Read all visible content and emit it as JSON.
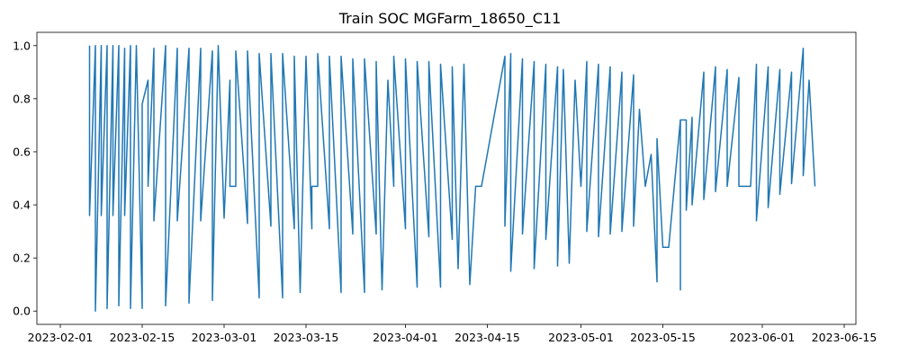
{
  "chart_data": {
    "type": "line",
    "title": "Train SOC MGFarm_18650_C11",
    "xlabel": "",
    "ylabel": "",
    "x_axis_kind": "date",
    "xlim": [
      "2023-01-28",
      "2023-06-17"
    ],
    "ylim": [
      -0.05,
      1.05
    ],
    "x_ticks": [
      "2023-02-01",
      "2023-02-15",
      "2023-03-01",
      "2023-03-15",
      "2023-04-01",
      "2023-04-15",
      "2023-05-01",
      "2023-05-15",
      "2023-06-01",
      "2023-06-15"
    ],
    "y_ticks": [
      0.0,
      0.2,
      0.4,
      0.6,
      0.8,
      1.0
    ],
    "grid": false,
    "legend": "none",
    "line_color": "#1f77b4",
    "series": [
      {
        "x": [
          "2023-02-06",
          "2023-02-06",
          "2023-02-07",
          "2023-02-07",
          "2023-02-08",
          "2023-02-08",
          "2023-02-09",
          "2023-02-09",
          "2023-02-10",
          "2023-02-10",
          "2023-02-11",
          "2023-02-11",
          "2023-02-12",
          "2023-02-12",
          "2023-02-13",
          "2023-02-13",
          "2023-02-14",
          "2023-02-15",
          "2023-02-15",
          "2023-02-16",
          "2023-02-16",
          "2023-02-17",
          "2023-02-17",
          "2023-02-19",
          "2023-02-19",
          "2023-02-21",
          "2023-02-21",
          "2023-02-23",
          "2023-02-23",
          "2023-02-25",
          "2023-02-25",
          "2023-02-27",
          "2023-02-27",
          "2023-02-28",
          "2023-03-01",
          "2023-03-02",
          "2023-03-02",
          "2023-03-03",
          "2023-03-03",
          "2023-03-05",
          "2023-03-05",
          "2023-03-07",
          "2023-03-07",
          "2023-03-09",
          "2023-03-09",
          "2023-03-11",
          "2023-03-11",
          "2023-03-13",
          "2023-03-13",
          "2023-03-14",
          "2023-03-15",
          "2023-03-16",
          "2023-03-16",
          "2023-03-17",
          "2023-03-17",
          "2023-03-19",
          "2023-03-19",
          "2023-03-21",
          "2023-03-21",
          "2023-03-23",
          "2023-03-23",
          "2023-03-25",
          "2023-03-25",
          "2023-03-27",
          "2023-03-27",
          "2023-03-28",
          "2023-03-29",
          "2023-03-30",
          "2023-03-30",
          "2023-04-01",
          "2023-04-01",
          "2023-04-03",
          "2023-04-03",
          "2023-04-05",
          "2023-04-05",
          "2023-04-07",
          "2023-04-07",
          "2023-04-09",
          "2023-04-09",
          "2023-04-10",
          "2023-04-11",
          "2023-04-12",
          "2023-04-13",
          "2023-04-14",
          "2023-04-14",
          "2023-04-18",
          "2023-04-18",
          "2023-04-19",
          "2023-04-19",
          "2023-04-21",
          "2023-04-21",
          "2023-04-23",
          "2023-04-23",
          "2023-04-25",
          "2023-04-25",
          "2023-04-27",
          "2023-04-27",
          "2023-04-28",
          "2023-04-29",
          "2023-04-30",
          "2023-05-01",
          "2023-05-01",
          "2023-05-02",
          "2023-05-02",
          "2023-05-04",
          "2023-05-04",
          "2023-05-06",
          "2023-05-06",
          "2023-05-08",
          "2023-05-08",
          "2023-05-10",
          "2023-05-10",
          "2023-05-11",
          "2023-05-12",
          "2023-05-13",
          "2023-05-14",
          "2023-05-14",
          "2023-05-15",
          "2023-05-15",
          "2023-05-16",
          "2023-05-16",
          "2023-05-18",
          "2023-05-18",
          "2023-05-18",
          "2023-05-19",
          "2023-05-19",
          "2023-05-20",
          "2023-05-20",
          "2023-05-22",
          "2023-05-22",
          "2023-05-24",
          "2023-05-24",
          "2023-05-26",
          "2023-05-26",
          "2023-05-28",
          "2023-05-28",
          "2023-05-29",
          "2023-05-30",
          "2023-05-30",
          "2023-05-31",
          "2023-05-31",
          "2023-06-02",
          "2023-06-02",
          "2023-06-04",
          "2023-06-04",
          "2023-06-06",
          "2023-06-06",
          "2023-06-08",
          "2023-06-08",
          "2023-06-09",
          "2023-06-10"
        ],
        "y": [
          1.0,
          0.36,
          1.0,
          0.0,
          1.0,
          0.36,
          1.0,
          0.01,
          1.0,
          0.36,
          1.0,
          0.02,
          0.99,
          0.36,
          1.0,
          0.01,
          1.0,
          0.01,
          0.78,
          0.87,
          0.47,
          0.99,
          0.34,
          1.0,
          0.02,
          0.99,
          0.34,
          0.99,
          0.03,
          0.99,
          0.34,
          0.98,
          0.04,
          1.0,
          0.35,
          0.87,
          0.47,
          0.47,
          0.98,
          0.33,
          0.98,
          0.05,
          0.97,
          0.32,
          0.97,
          0.05,
          0.97,
          0.31,
          0.96,
          0.07,
          0.96,
          0.31,
          0.47,
          0.47,
          0.97,
          0.31,
          0.96,
          0.07,
          0.96,
          0.29,
          0.95,
          0.07,
          0.95,
          0.29,
          0.94,
          0.08,
          0.87,
          0.47,
          0.96,
          0.31,
          0.95,
          0.09,
          0.94,
          0.28,
          0.94,
          0.09,
          0.93,
          0.27,
          0.92,
          0.16,
          0.93,
          0.1,
          0.47,
          0.47,
          0.47,
          0.96,
          0.32,
          0.97,
          0.15,
          0.95,
          0.29,
          0.94,
          0.16,
          0.93,
          0.27,
          0.92,
          0.17,
          0.91,
          0.18,
          0.87,
          0.47,
          0.47,
          0.94,
          0.3,
          0.93,
          0.28,
          0.92,
          0.29,
          0.9,
          0.3,
          0.89,
          0.32,
          0.76,
          0.47,
          0.59,
          0.11,
          0.65,
          0.24,
          0.24,
          0.24,
          0.24,
          0.72,
          0.08,
          0.72,
          0.72,
          0.38,
          0.73,
          0.4,
          0.9,
          0.42,
          0.92,
          0.45,
          0.91,
          0.47,
          0.88,
          0.47,
          0.47,
          0.47,
          0.47,
          0.93,
          0.34,
          0.92,
          0.39,
          0.91,
          0.44,
          0.9,
          0.48,
          0.99,
          0.51,
          0.87,
          0.47
        ]
      }
    ]
  }
}
